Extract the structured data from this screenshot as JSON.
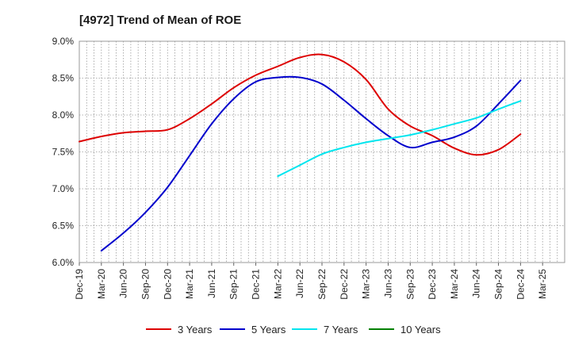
{
  "chart_data": {
    "type": "line",
    "title": "[4972]  Trend of Mean of ROE",
    "xlabel": "",
    "ylabel": "",
    "y_ticks": [
      "6.0%",
      "6.5%",
      "7.0%",
      "7.5%",
      "8.0%",
      "8.5%",
      "9.0%"
    ],
    "y_tick_values": [
      6.0,
      6.5,
      7.0,
      7.5,
      8.0,
      8.5,
      9.0
    ],
    "ylim": [
      6.0,
      9.0
    ],
    "x_ticks": [
      "Dec-19",
      "Mar-20",
      "Jun-20",
      "Sep-20",
      "Dec-20",
      "Mar-21",
      "Jun-21",
      "Sep-21",
      "Dec-21",
      "Mar-22",
      "Jun-22",
      "Sep-22",
      "Dec-22",
      "Mar-23",
      "Jun-23",
      "Sep-23",
      "Dec-23",
      "Mar-24",
      "Jun-24",
      "Sep-24",
      "Dec-24",
      "Mar-25"
    ],
    "grid": true,
    "legend_position": "bottom",
    "series": [
      {
        "name": "3 Years",
        "color": "#dd0000",
        "x_index": [
          0,
          1,
          2,
          3,
          4,
          5,
          6,
          7,
          8,
          9,
          10,
          11,
          12,
          13,
          14,
          15,
          16,
          17,
          18,
          19,
          20
        ],
        "values": [
          7.64,
          7.71,
          7.76,
          7.78,
          7.8,
          7.95,
          8.15,
          8.37,
          8.54,
          8.66,
          8.78,
          8.82,
          8.72,
          8.48,
          8.08,
          7.85,
          7.72,
          7.55,
          7.46,
          7.53,
          7.74
        ]
      },
      {
        "name": "5 Years",
        "color": "#0000cc",
        "x_index": [
          1,
          2,
          3,
          4,
          5,
          6,
          7,
          8,
          9,
          10,
          11,
          12,
          13,
          14,
          15,
          16,
          17,
          18,
          19,
          20
        ],
        "values": [
          6.16,
          6.4,
          6.68,
          7.02,
          7.45,
          7.88,
          8.22,
          8.45,
          8.51,
          8.51,
          8.42,
          8.2,
          7.95,
          7.72,
          7.56,
          7.63,
          7.7,
          7.85,
          8.15,
          8.47
        ]
      },
      {
        "name": "7 Years",
        "color": "#00e5ee",
        "x_index": [
          9,
          10,
          11,
          12,
          13,
          14,
          15,
          16,
          17,
          18,
          19,
          20
        ],
        "values": [
          7.17,
          7.32,
          7.47,
          7.56,
          7.63,
          7.68,
          7.73,
          7.8,
          7.88,
          7.96,
          8.08,
          8.19
        ]
      },
      {
        "name": "10 Years",
        "color": "#008000",
        "x_index": [],
        "values": []
      }
    ]
  }
}
